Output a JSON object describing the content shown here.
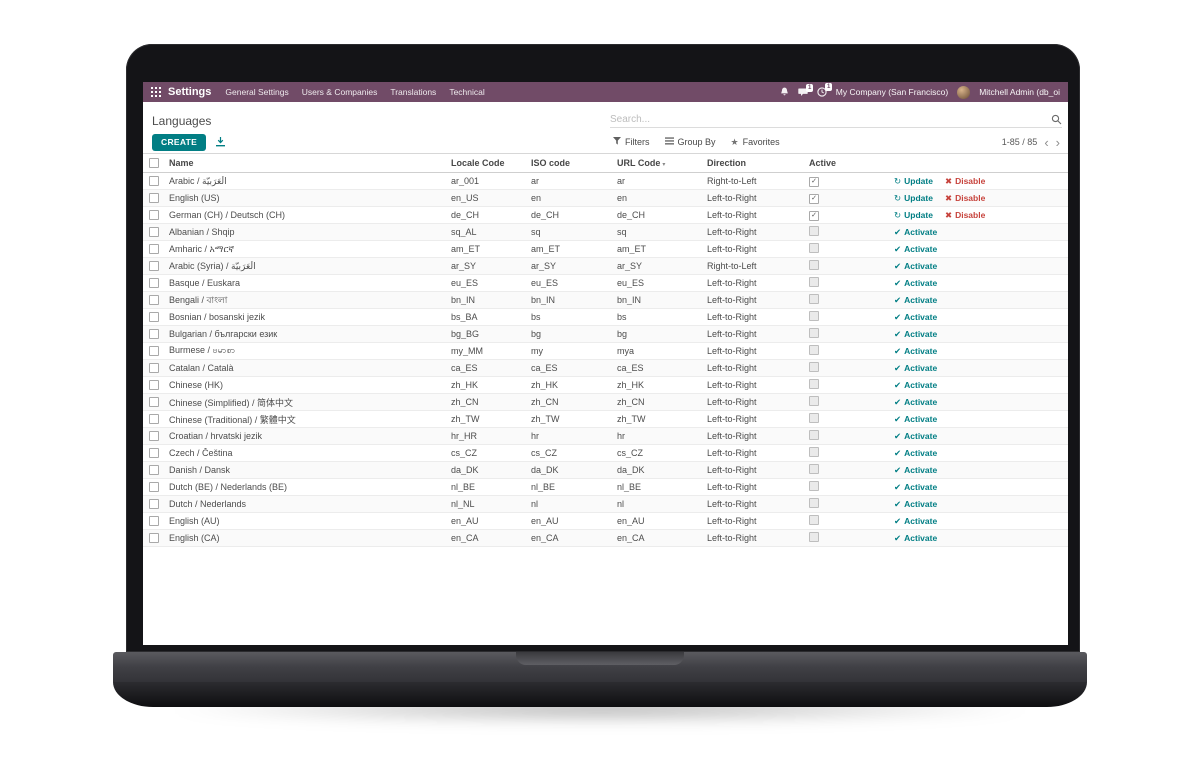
{
  "topbar": {
    "app_name": "Settings",
    "menu_items": [
      "General Settings",
      "Users & Companies",
      "Translations",
      "Technical"
    ],
    "company_name": "My Company (San Francisco)",
    "user_name": "Mitchell Admin (db_oi",
    "message_badge": "1",
    "activity_badge": "1"
  },
  "control_panel": {
    "breadcrumb": "Languages",
    "search_placeholder": "Search...",
    "create_label": "CREATE",
    "filters_label": "Filters",
    "groupby_label": "Group By",
    "favorites_label": "Favorites",
    "pager": "1-85 / 85",
    "pager_prev": "‹",
    "pager_next": "›"
  },
  "icons": {
    "update": "↻",
    "disable": "✖",
    "activate": "✔",
    "checked": "✓",
    "favorites_star": "★",
    "sort_caret": "▾"
  },
  "actions": {
    "update": "Update",
    "disable": "Disable",
    "activate": "Activate"
  },
  "table": {
    "columns": [
      "Name",
      "Locale Code",
      "ISO code",
      "URL Code",
      "Direction",
      "Active"
    ],
    "rows": [
      {
        "name": "Arabic / الْعَرَبيّة",
        "locale": "ar_001",
        "iso": "ar",
        "url": "ar",
        "direction": "Right-to-Left",
        "active": true
      },
      {
        "name": "English (US)",
        "locale": "en_US",
        "iso": "en",
        "url": "en",
        "direction": "Left-to-Right",
        "active": true
      },
      {
        "name": "German (CH) / Deutsch (CH)",
        "locale": "de_CH",
        "iso": "de_CH",
        "url": "de_CH",
        "direction": "Left-to-Right",
        "active": true
      },
      {
        "name": "Albanian / Shqip",
        "locale": "sq_AL",
        "iso": "sq",
        "url": "sq",
        "direction": "Left-to-Right",
        "active": false
      },
      {
        "name": "Amharic / አማርኛ",
        "locale": "am_ET",
        "iso": "am_ET",
        "url": "am_ET",
        "direction": "Left-to-Right",
        "active": false
      },
      {
        "name": "Arabic (Syria) / الْعَرَبيّة",
        "locale": "ar_SY",
        "iso": "ar_SY",
        "url": "ar_SY",
        "direction": "Right-to-Left",
        "active": false
      },
      {
        "name": "Basque / Euskara",
        "locale": "eu_ES",
        "iso": "eu_ES",
        "url": "eu_ES",
        "direction": "Left-to-Right",
        "active": false
      },
      {
        "name": "Bengali / বাংলা",
        "locale": "bn_IN",
        "iso": "bn_IN",
        "url": "bn_IN",
        "direction": "Left-to-Right",
        "active": false
      },
      {
        "name": "Bosnian / bosanski jezik",
        "locale": "bs_BA",
        "iso": "bs",
        "url": "bs",
        "direction": "Left-to-Right",
        "active": false
      },
      {
        "name": "Bulgarian / български език",
        "locale": "bg_BG",
        "iso": "bg",
        "url": "bg",
        "direction": "Left-to-Right",
        "active": false
      },
      {
        "name": "Burmese / ဗမာစာ",
        "locale": "my_MM",
        "iso": "my",
        "url": "mya",
        "direction": "Left-to-Right",
        "active": false
      },
      {
        "name": "Catalan / Català",
        "locale": "ca_ES",
        "iso": "ca_ES",
        "url": "ca_ES",
        "direction": "Left-to-Right",
        "active": false
      },
      {
        "name": "Chinese (HK)",
        "locale": "zh_HK",
        "iso": "zh_HK",
        "url": "zh_HK",
        "direction": "Left-to-Right",
        "active": false
      },
      {
        "name": "Chinese (Simplified) / 简体中文",
        "locale": "zh_CN",
        "iso": "zh_CN",
        "url": "zh_CN",
        "direction": "Left-to-Right",
        "active": false
      },
      {
        "name": "Chinese (Traditional) / 繁體中文",
        "locale": "zh_TW",
        "iso": "zh_TW",
        "url": "zh_TW",
        "direction": "Left-to-Right",
        "active": false
      },
      {
        "name": "Croatian / hrvatski jezik",
        "locale": "hr_HR",
        "iso": "hr",
        "url": "hr",
        "direction": "Left-to-Right",
        "active": false
      },
      {
        "name": "Czech / Čeština",
        "locale": "cs_CZ",
        "iso": "cs_CZ",
        "url": "cs_CZ",
        "direction": "Left-to-Right",
        "active": false
      },
      {
        "name": "Danish / Dansk",
        "locale": "da_DK",
        "iso": "da_DK",
        "url": "da_DK",
        "direction": "Left-to-Right",
        "active": false
      },
      {
        "name": "Dutch (BE) / Nederlands (BE)",
        "locale": "nl_BE",
        "iso": "nl_BE",
        "url": "nl_BE",
        "direction": "Left-to-Right",
        "active": false
      },
      {
        "name": "Dutch / Nederlands",
        "locale": "nl_NL",
        "iso": "nl",
        "url": "nl",
        "direction": "Left-to-Right",
        "active": false
      },
      {
        "name": "English (AU)",
        "locale": "en_AU",
        "iso": "en_AU",
        "url": "en_AU",
        "direction": "Left-to-Right",
        "active": false
      },
      {
        "name": "English (CA)",
        "locale": "en_CA",
        "iso": "en_CA",
        "url": "en_CA",
        "direction": "Left-to-Right",
        "active": false
      }
    ]
  },
  "colors": {
    "topbar": "#714B67",
    "accent": "#017e84",
    "danger": "#c7433c"
  }
}
